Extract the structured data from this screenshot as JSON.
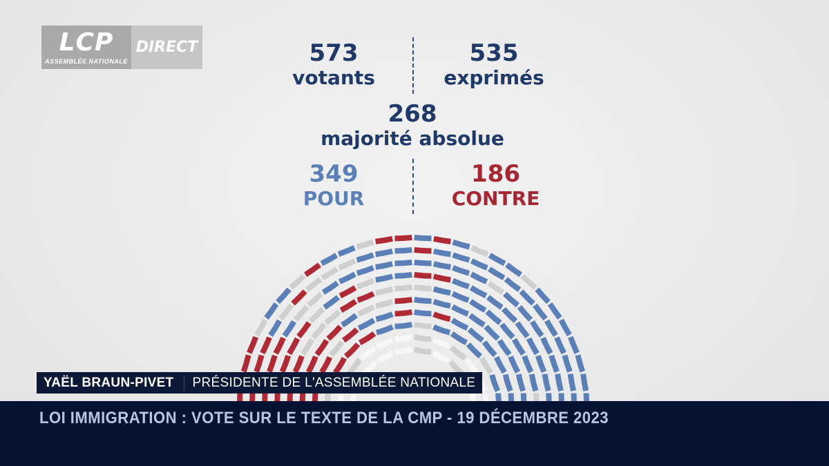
{
  "channel": {
    "logo_text": "LCP",
    "logo_subtitle": "ASSEMBLÉE NATIONALE",
    "live_label": "DIRECT"
  },
  "vote": {
    "votants_count": "573",
    "votants_label": "votants",
    "exprimes_count": "535",
    "exprimes_label": "exprimés",
    "majority_count": "268",
    "majority_label": "majorité absolue",
    "pour_count": "349",
    "pour_label": "POUR",
    "contre_count": "186",
    "contre_label": "CONTRE"
  },
  "hemicycle": {
    "pour": 349,
    "contre": 186,
    "abstention_or_absent_of_535_expressed_total_seats": 573,
    "colors": {
      "pour": "#5b80b8",
      "contre": "#b02a36",
      "other": "#cfcfcf",
      "empty": "#f7f7f7"
    }
  },
  "lower_third": {
    "name": "YAËL BRAUN-PIVET",
    "role": "PRÉSIDENTE DE L'ASSEMBLÉE NATIONALE"
  },
  "ticker": {
    "headline": "LOI IMMIGRATION : VOTE SUR LE TEXTE DE LA CMP - 19 DÉCEMBRE 2023"
  }
}
